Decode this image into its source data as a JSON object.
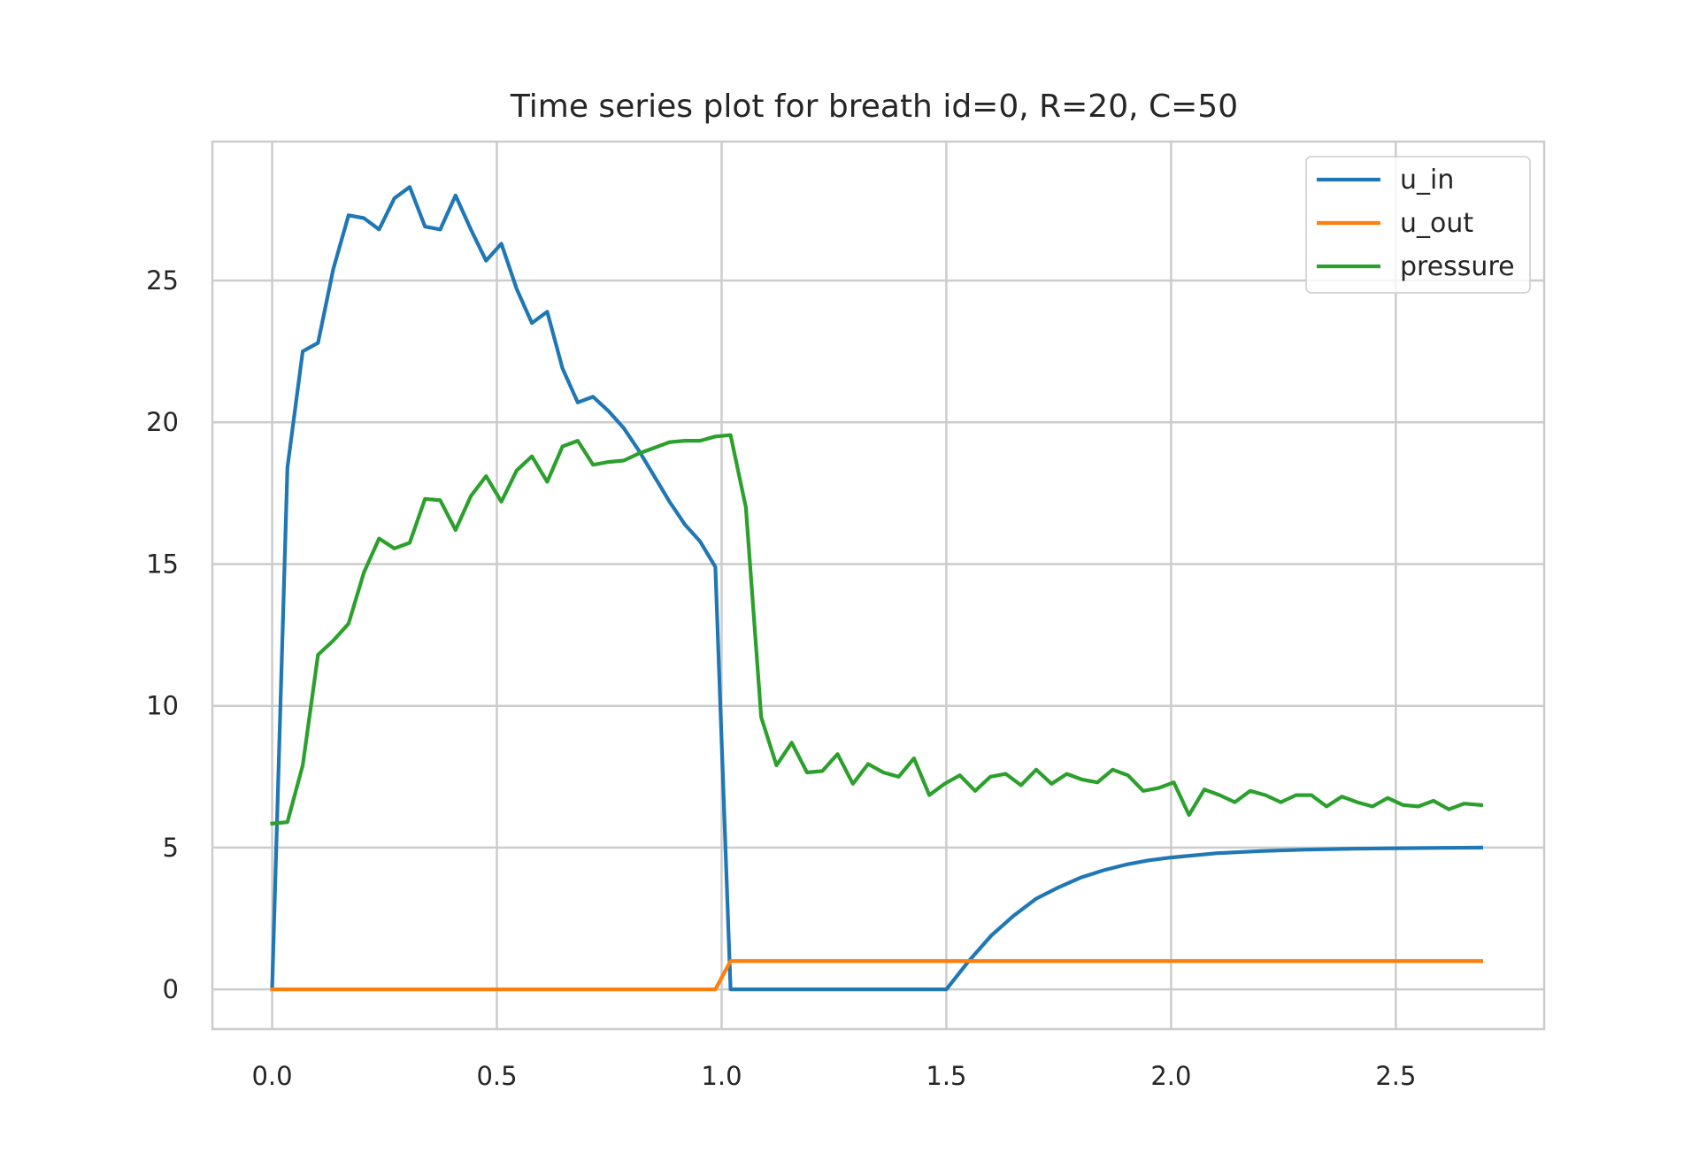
{
  "chart_data": {
    "type": "line",
    "title": "Time series plot for breath id=0, R=20, C=50",
    "xlabel": "",
    "ylabel": "",
    "xlim": [
      -0.133,
      2.83
    ],
    "ylim": [
      -1.4,
      29.9
    ],
    "xticks": [
      0.0,
      0.5,
      1.0,
      1.5,
      2.0,
      2.5
    ],
    "xtick_labels": [
      "0.0",
      "0.5",
      "1.0",
      "1.5",
      "2.0",
      "2.5"
    ],
    "yticks": [
      0,
      5,
      10,
      15,
      20,
      25
    ],
    "ytick_labels": [
      "0",
      "5",
      "10",
      "15",
      "20",
      "25"
    ],
    "grid": true,
    "legend_position": "upper right",
    "series": [
      {
        "name": "u_in",
        "color": "#1f77b4",
        "x": [
          0.0,
          0.034,
          0.068,
          0.102,
          0.136,
          0.17,
          0.204,
          0.238,
          0.272,
          0.306,
          0.34,
          0.374,
          0.408,
          0.442,
          0.476,
          0.51,
          0.544,
          0.578,
          0.612,
          0.646,
          0.68,
          0.714,
          0.748,
          0.782,
          0.816,
          0.85,
          0.884,
          0.918,
          0.952,
          0.986,
          1.02,
          1.5,
          1.55,
          1.6,
          1.65,
          1.7,
          1.75,
          1.8,
          1.85,
          1.9,
          1.95,
          2.0,
          2.1,
          2.2,
          2.3,
          2.4,
          2.5,
          2.6,
          2.69
        ],
        "y": [
          0.1,
          18.4,
          22.5,
          22.8,
          25.4,
          27.3,
          27.2,
          26.8,
          27.9,
          28.3,
          26.9,
          26.8,
          28.0,
          26.8,
          25.7,
          26.3,
          24.7,
          23.5,
          23.9,
          21.9,
          20.7,
          20.9,
          20.4,
          19.8,
          19.0,
          18.1,
          17.2,
          16.4,
          15.8,
          14.9,
          0.0,
          0.0,
          1.0,
          1.9,
          2.6,
          3.2,
          3.6,
          3.95,
          4.2,
          4.4,
          4.55,
          4.65,
          4.8,
          4.88,
          4.93,
          4.96,
          4.98,
          4.99,
          5.0
        ]
      },
      {
        "name": "u_out",
        "color": "#ff7f0e",
        "x": [
          0.0,
          0.986,
          1.02,
          2.69
        ],
        "y": [
          0,
          0,
          1,
          1
        ]
      },
      {
        "name": "pressure",
        "color": "#2ca02c",
        "x": [
          0.0,
          0.034,
          0.068,
          0.102,
          0.136,
          0.17,
          0.204,
          0.238,
          0.272,
          0.306,
          0.34,
          0.374,
          0.408,
          0.442,
          0.476,
          0.51,
          0.544,
          0.578,
          0.612,
          0.646,
          0.68,
          0.714,
          0.748,
          0.782,
          0.816,
          0.85,
          0.884,
          0.918,
          0.952,
          0.986,
          1.02,
          1.054,
          1.088,
          1.122,
          1.156,
          1.19,
          1.224,
          1.258,
          1.292,
          1.326,
          1.36,
          1.394,
          1.428,
          1.462,
          1.496,
          1.53,
          1.564,
          1.598,
          1.632,
          1.666,
          1.7,
          1.734,
          1.768,
          1.802,
          1.836,
          1.87,
          1.904,
          1.938,
          1.972,
          2.006,
          2.04,
          2.074,
          2.108,
          2.142,
          2.176,
          2.21,
          2.244,
          2.278,
          2.312,
          2.346,
          2.38,
          2.414,
          2.448,
          2.482,
          2.516,
          2.55,
          2.584,
          2.618,
          2.652,
          2.69
        ],
        "y": [
          5.85,
          5.9,
          7.9,
          11.8,
          12.3,
          12.9,
          14.7,
          15.9,
          15.55,
          15.75,
          17.3,
          17.25,
          16.2,
          17.4,
          18.1,
          17.2,
          18.3,
          18.8,
          17.9,
          19.15,
          19.35,
          18.5,
          18.6,
          18.65,
          18.9,
          19.1,
          19.3,
          19.35,
          19.35,
          19.5,
          19.55,
          17.0,
          9.6,
          7.9,
          8.7,
          7.65,
          7.7,
          8.3,
          7.25,
          7.95,
          7.65,
          7.5,
          8.15,
          6.85,
          7.25,
          7.55,
          7.0,
          7.5,
          7.6,
          7.2,
          7.75,
          7.25,
          7.6,
          7.4,
          7.3,
          7.75,
          7.55,
          7.0,
          7.1,
          7.3,
          6.15,
          7.05,
          6.85,
          6.6,
          7.0,
          6.85,
          6.6,
          6.85,
          6.85,
          6.45,
          6.8,
          6.6,
          6.45,
          6.75,
          6.5,
          6.45,
          6.65,
          6.35,
          6.55,
          6.5
        ]
      }
    ]
  }
}
